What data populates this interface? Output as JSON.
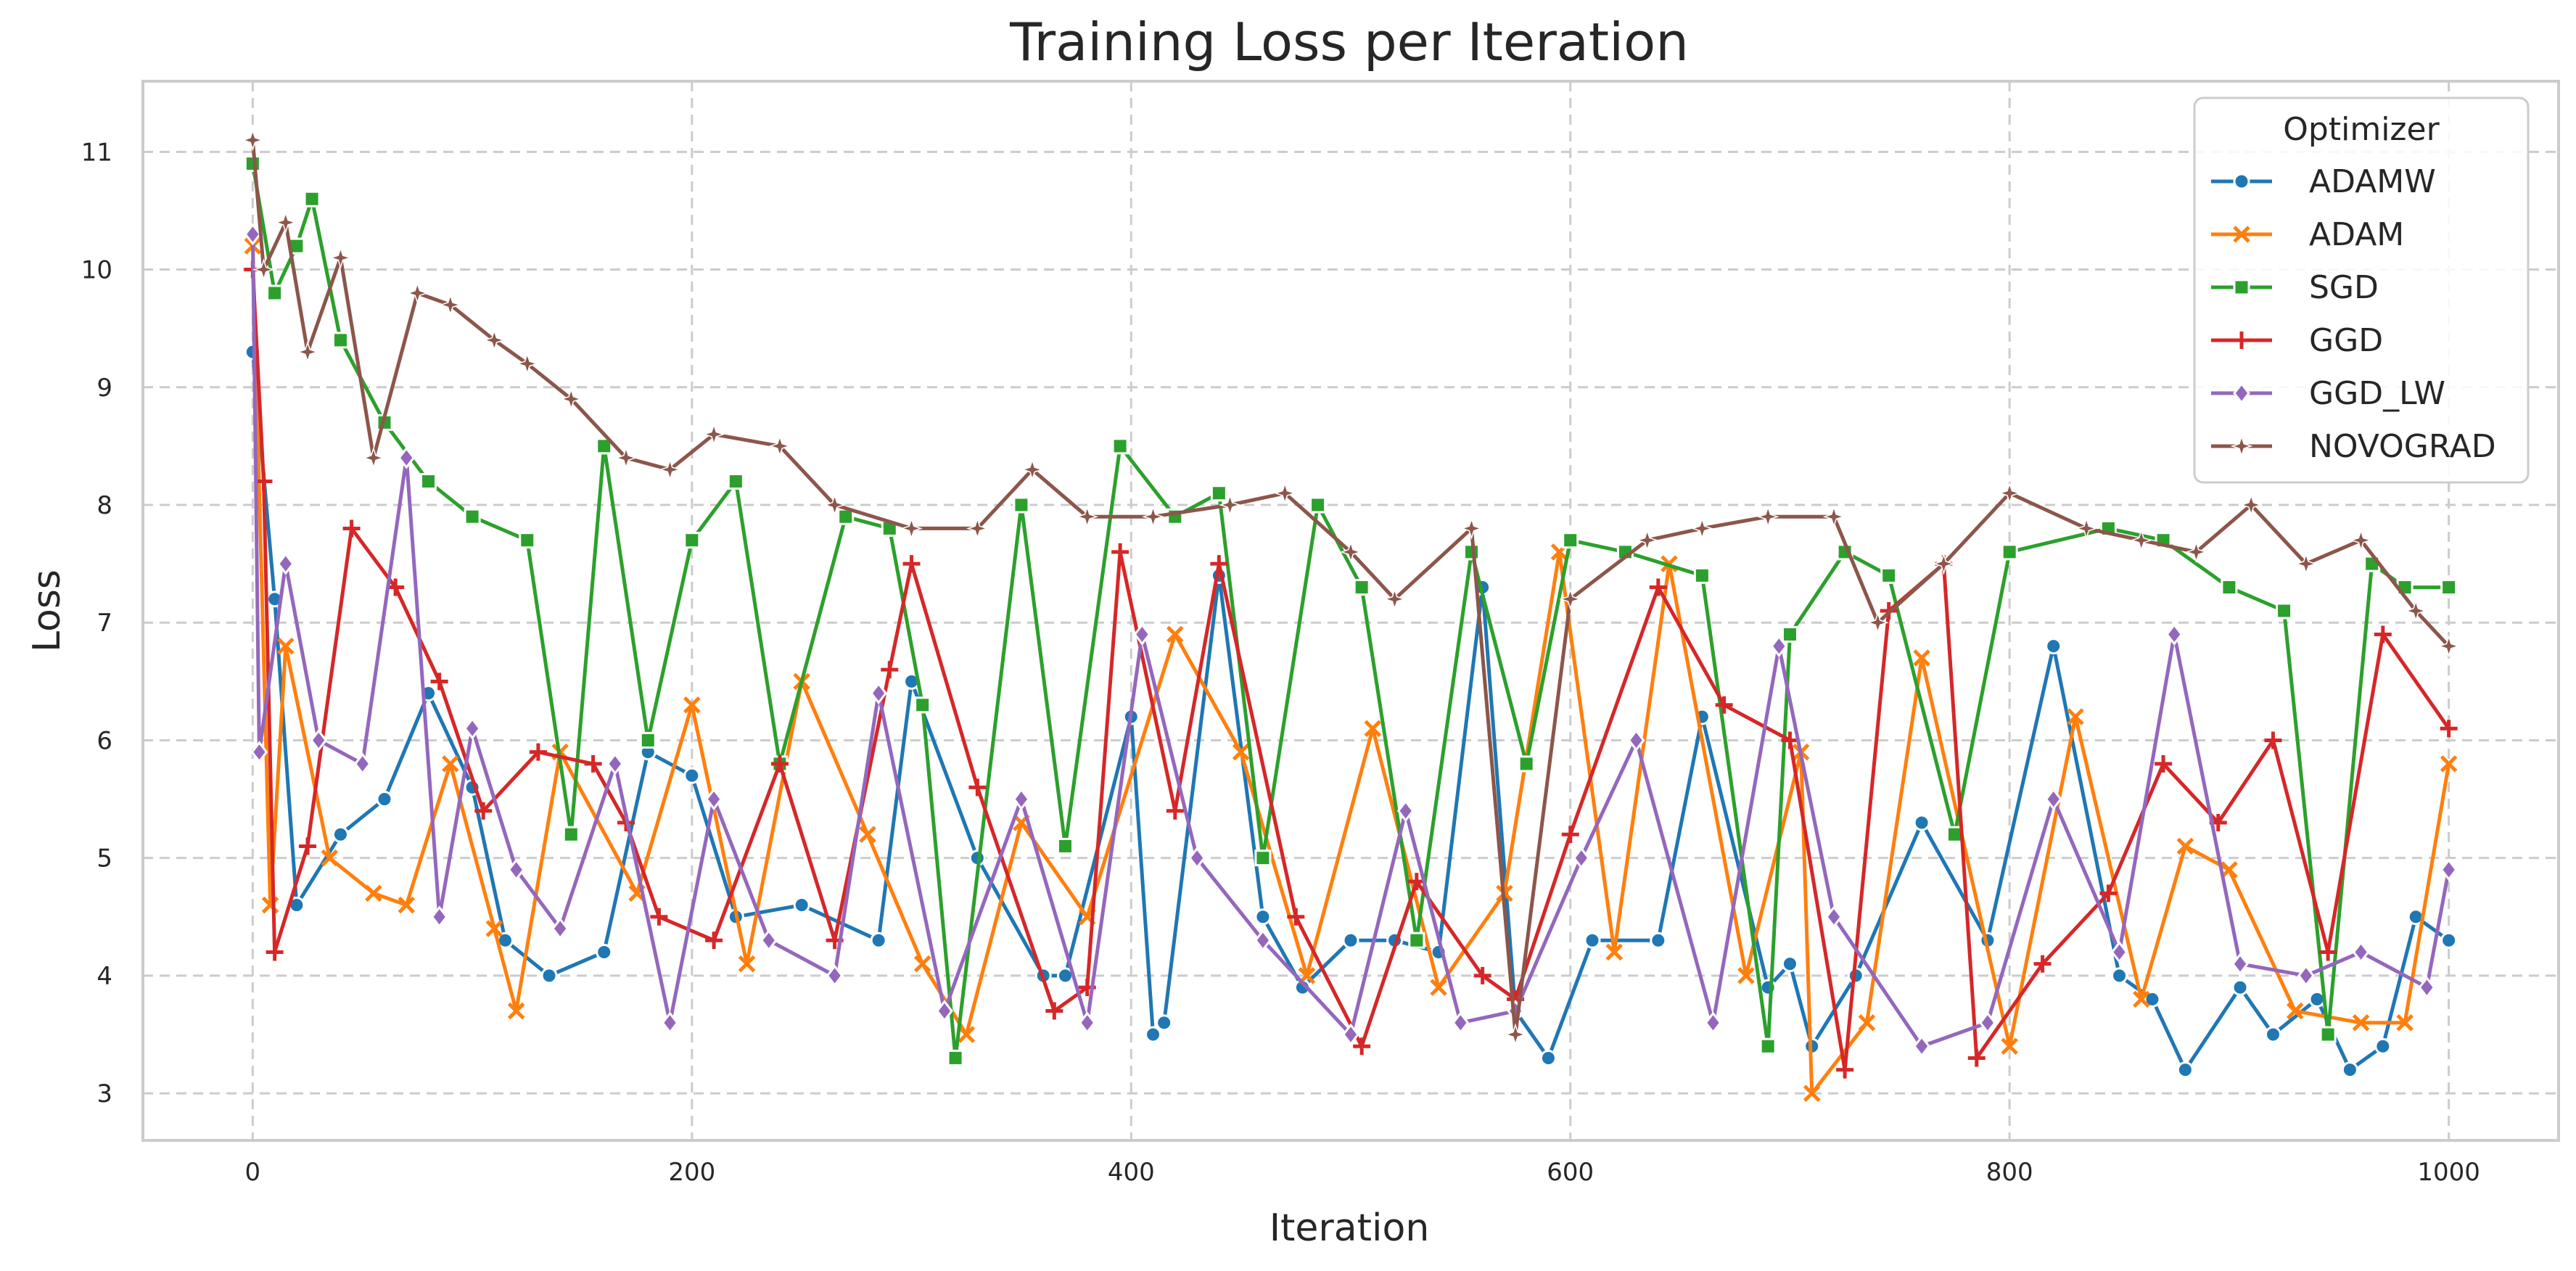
{
  "chart_data": {
    "type": "line",
    "title": "Training Loss per Iteration",
    "xlabel": "Iteration",
    "ylabel": "Loss",
    "xlim": [
      -50,
      1050
    ],
    "ylim": [
      2.6,
      11.6
    ],
    "x_ticks": [
      0,
      200,
      400,
      600,
      800,
      1000
    ],
    "y_ticks": [
      3,
      4,
      5,
      6,
      7,
      8,
      9,
      10,
      11
    ],
    "grid": true,
    "legend_title": "Optimizer",
    "legend_position": "top-right",
    "series": [
      {
        "name": "ADAMW",
        "color": "#1f77b4",
        "marker": "circle",
        "x": [
          0,
          10,
          20,
          40,
          60,
          80,
          100,
          115,
          135,
          160,
          180,
          200,
          220,
          250,
          285,
          300,
          330,
          360,
          370,
          400,
          410,
          415,
          440,
          460,
          478,
          500,
          520,
          540,
          560,
          575,
          590,
          610,
          640,
          660,
          690,
          700,
          710,
          730,
          760,
          790,
          820,
          850,
          865,
          880,
          905,
          920,
          940,
          955,
          970,
          985,
          1000
        ],
        "y": [
          9.3,
          7.2,
          4.6,
          5.2,
          5.5,
          6.4,
          5.6,
          4.3,
          4.0,
          4.2,
          5.9,
          5.7,
          4.5,
          4.6,
          4.3,
          6.5,
          5.0,
          4.0,
          4.0,
          6.2,
          3.5,
          3.6,
          7.4,
          4.5,
          3.9,
          4.3,
          4.3,
          4.2,
          7.3,
          3.7,
          3.3,
          4.3,
          4.3,
          6.2,
          3.9,
          4.1,
          3.4,
          4.0,
          5.3,
          4.3,
          6.8,
          4.0,
          3.8,
          3.2,
          3.9,
          3.5,
          3.8,
          3.2,
          3.4,
          4.5,
          4.3
        ]
      },
      {
        "name": "ADAM",
        "color": "#ff7f0e",
        "marker": "x",
        "x": [
          0,
          8,
          15,
          35,
          55,
          70,
          90,
          110,
          120,
          140,
          175,
          200,
          225,
          250,
          280,
          305,
          325,
          350,
          380,
          420,
          450,
          480,
          510,
          540,
          570,
          595,
          620,
          645,
          680,
          705,
          710,
          735,
          760,
          800,
          830,
          860,
          880,
          900,
          930,
          960,
          980,
          1000
        ],
        "y": [
          10.2,
          4.6,
          6.8,
          5.0,
          4.7,
          4.6,
          5.8,
          4.4,
          3.7,
          5.9,
          4.7,
          6.3,
          4.1,
          6.5,
          5.2,
          4.1,
          3.5,
          5.3,
          4.5,
          6.9,
          5.9,
          4.0,
          6.1,
          3.9,
          4.7,
          7.6,
          4.2,
          7.5,
          4.0,
          5.9,
          3.0,
          3.6,
          6.7,
          3.4,
          6.2,
          3.8,
          5.1,
          4.9,
          3.7,
          3.6,
          3.6,
          5.8
        ]
      },
      {
        "name": "SGD",
        "color": "#2ca02c",
        "marker": "square",
        "x": [
          0,
          10,
          20,
          27,
          40,
          60,
          80,
          100,
          125,
          145,
          160,
          180,
          200,
          220,
          240,
          270,
          290,
          305,
          320,
          350,
          370,
          395,
          420,
          440,
          460,
          485,
          505,
          530,
          555,
          580,
          600,
          625,
          660,
          690,
          700,
          725,
          745,
          775,
          800,
          845,
          870,
          900,
          925,
          945,
          965,
          980,
          1000
        ],
        "y": [
          10.9,
          9.8,
          10.2,
          10.6,
          9.4,
          8.7,
          8.2,
          7.9,
          7.7,
          5.2,
          8.5,
          6.0,
          7.7,
          8.2,
          5.8,
          7.9,
          7.8,
          6.3,
          3.3,
          8.0,
          5.1,
          8.5,
          7.9,
          8.1,
          5.0,
          8.0,
          7.3,
          4.3,
          7.6,
          5.8,
          7.7,
          7.6,
          7.4,
          3.4,
          6.9,
          7.6,
          7.4,
          5.2,
          7.6,
          7.8,
          7.7,
          7.3,
          7.1,
          3.5,
          7.5,
          7.3,
          7.3
        ]
      },
      {
        "name": "GGD",
        "color": "#d62728",
        "marker": "plus",
        "x": [
          0,
          5,
          10,
          25,
          45,
          65,
          85,
          105,
          130,
          155,
          170,
          185,
          210,
          240,
          265,
          290,
          300,
          330,
          365,
          380,
          395,
          420,
          440,
          475,
          505,
          530,
          560,
          575,
          600,
          640,
          670,
          700,
          725,
          745,
          770,
          785,
          815,
          845,
          870,
          895,
          920,
          945,
          970,
          1000
        ],
        "y": [
          10.0,
          8.2,
          4.2,
          5.1,
          7.8,
          7.3,
          6.5,
          5.4,
          5.9,
          5.8,
          5.3,
          4.5,
          4.3,
          5.8,
          4.3,
          6.6,
          7.5,
          5.6,
          3.7,
          3.9,
          7.6,
          5.4,
          7.5,
          4.5,
          3.4,
          4.8,
          4.0,
          3.8,
          5.2,
          7.3,
          6.3,
          6.0,
          3.2,
          7.1,
          7.5,
          3.3,
          4.1,
          4.7,
          5.8,
          5.3,
          6.0,
          4.2,
          6.9,
          6.1
        ]
      },
      {
        "name": "GGD_LW",
        "color": "#9467bd",
        "marker": "diamond",
        "x": [
          0,
          3,
          15,
          30,
          50,
          70,
          85,
          100,
          120,
          140,
          165,
          190,
          210,
          235,
          265,
          285,
          315,
          350,
          380,
          405,
          430,
          460,
          500,
          525,
          550,
          575,
          605,
          630,
          665,
          695,
          720,
          760,
          790,
          820,
          850,
          875,
          905,
          935,
          960,
          990,
          1000
        ],
        "y": [
          10.3,
          5.9,
          7.5,
          6.0,
          5.8,
          8.4,
          4.5,
          6.1,
          4.9,
          4.4,
          5.8,
          3.6,
          5.5,
          4.3,
          4.0,
          6.4,
          3.7,
          5.5,
          3.6,
          6.9,
          5.0,
          4.3,
          3.5,
          5.4,
          3.6,
          3.7,
          5.0,
          6.0,
          3.6,
          6.8,
          4.5,
          3.4,
          3.6,
          5.5,
          4.2,
          6.9,
          4.1,
          4.0,
          4.2,
          3.9,
          4.9
        ]
      },
      {
        "name": "NOVOGRAD",
        "color": "#8c564b",
        "marker": "star",
        "x": [
          0,
          5,
          15,
          25,
          40,
          55,
          75,
          90,
          110,
          125,
          145,
          170,
          190,
          210,
          240,
          265,
          300,
          330,
          355,
          380,
          410,
          445,
          470,
          500,
          520,
          555,
          575,
          600,
          635,
          660,
          690,
          720,
          740,
          770,
          800,
          835,
          860,
          885,
          910,
          935,
          960,
          985,
          1000
        ],
        "y": [
          11.1,
          10.0,
          10.4,
          9.3,
          10.1,
          8.4,
          9.8,
          9.7,
          9.4,
          9.2,
          8.9,
          8.4,
          8.3,
          8.6,
          8.5,
          8.0,
          7.8,
          7.8,
          8.3,
          7.9,
          7.9,
          8.0,
          8.1,
          7.6,
          7.2,
          7.8,
          3.5,
          7.2,
          7.7,
          7.8,
          7.9,
          7.9,
          7.0,
          7.5,
          8.1,
          7.8,
          7.7,
          7.6,
          8.0,
          7.5,
          7.7,
          7.1,
          6.8
        ]
      }
    ]
  }
}
